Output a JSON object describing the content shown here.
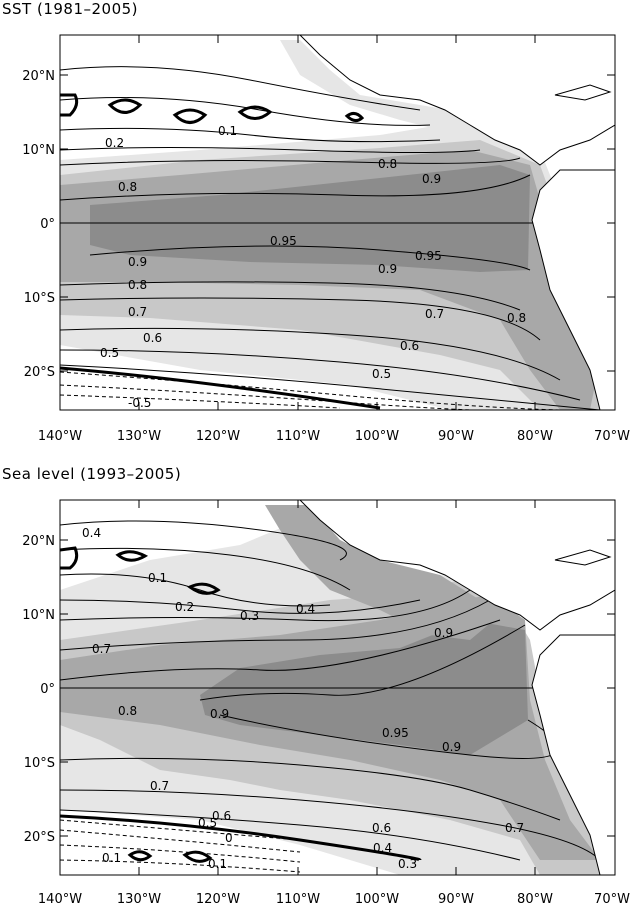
{
  "panels": [
    {
      "id": "sst",
      "title": "SST (1981–2005)",
      "lat_ticks": [
        "20°N",
        "10°N",
        "0°",
        "10°S",
        "20°S"
      ],
      "lon_ticks": [
        "140°W",
        "130°W",
        "120°W",
        "110°W",
        "100°W",
        "90°W",
        "80°W",
        "70°W"
      ],
      "contour_labels": [
        "0.2",
        "0.1",
        "0.8",
        "0.9",
        "0.8",
        "0.95",
        "0.9",
        "0.95",
        "0.9",
        "0.8",
        "0.7",
        "0.7",
        "0.8",
        "0.6",
        "0.6",
        "0.5",
        "0.5",
        "-0.5"
      ]
    },
    {
      "id": "sea-level",
      "title": "Sea level (1993–2005)",
      "lat_ticks": [
        "20°N",
        "10°N",
        "0°",
        "10°S",
        "20°S"
      ],
      "lon_ticks": [
        "140°W",
        "130°W",
        "120°W",
        "110°W",
        "100°W",
        "90°W",
        "80°W",
        "70°W"
      ],
      "contour_labels": [
        "0.4",
        "0.1",
        "0.2",
        "0.3",
        "0.4",
        "0.9",
        "0.7",
        "0.8",
        "0.9",
        "0.95",
        "0.9",
        "0.7",
        "0.6",
        "0.5",
        "0",
        "0.6",
        "0.7",
        "0.4",
        "0.3",
        "0.1",
        "0.1"
      ]
    }
  ],
  "colors": {
    "shade_light": "#e6e6e6",
    "shade_mid": "#c8c8c8",
    "shade_dark": "#a8a8a8",
    "shade_darkest": "#8c8c8c",
    "land": "#ffffff",
    "line": "#000000"
  }
}
